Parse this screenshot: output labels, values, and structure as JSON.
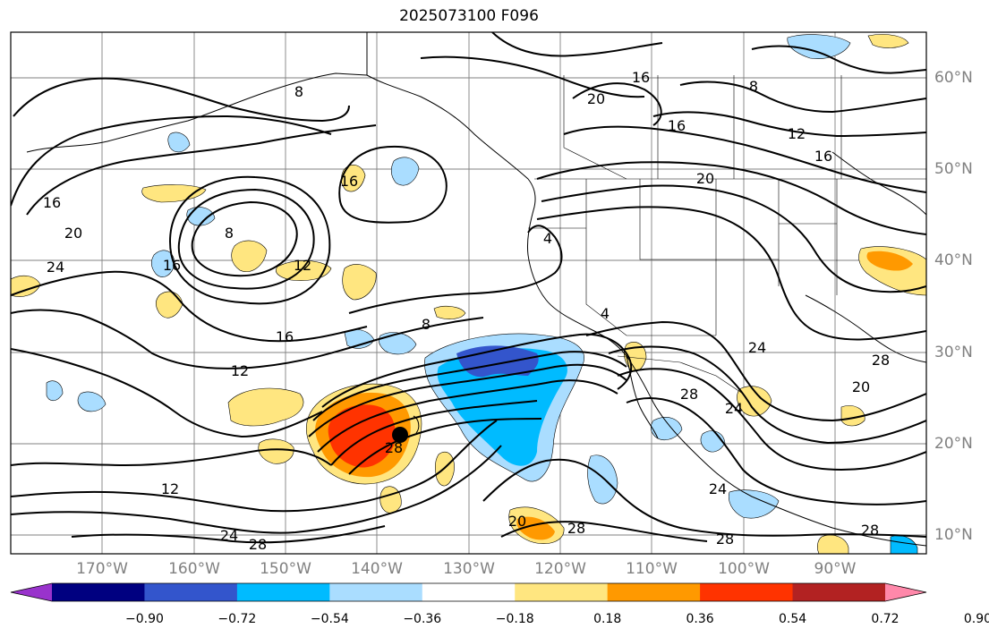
{
  "title": "2025073100 F096",
  "latitude_labels": [
    "60°N",
    "50°N",
    "40°N",
    "30°N",
    "20°N",
    "10°N"
  ],
  "longitude_labels": [
    "170°W",
    "160°W",
    "150°W",
    "140°W",
    "130°W",
    "120°W",
    "110°W",
    "100°W",
    "90°W"
  ],
  "contour_labels": [
    "8",
    "16",
    "20",
    "16",
    "12",
    "8",
    "16",
    "20",
    "24",
    "16",
    "8",
    "12",
    "16",
    "8",
    "12",
    "16",
    "20",
    "24",
    "28",
    "28",
    "24",
    "20",
    "24",
    "28",
    "12",
    "24",
    "28",
    "20",
    "28",
    "28",
    "28",
    "16",
    "4",
    "4"
  ],
  "storm_marker": "tropical-cyclone-position",
  "colorbar": {
    "ticks": [
      "−0.90",
      "−0.72",
      "−0.54",
      "−0.36",
      "−0.18",
      "0.18",
      "0.36",
      "0.54",
      "0.72",
      "0.90"
    ],
    "colors": [
      "#9933cc",
      "#000080",
      "#3355cc",
      "#00bbff",
      "#aaddff",
      "#ffffff",
      "#ffe680",
      "#ff9900",
      "#ff3300",
      "#b22222",
      "#ff88aa"
    ],
    "extend": "both"
  },
  "colors": {
    "contour": "#000000",
    "coast": "#000000",
    "grid": "#808080",
    "label": "#808080"
  }
}
